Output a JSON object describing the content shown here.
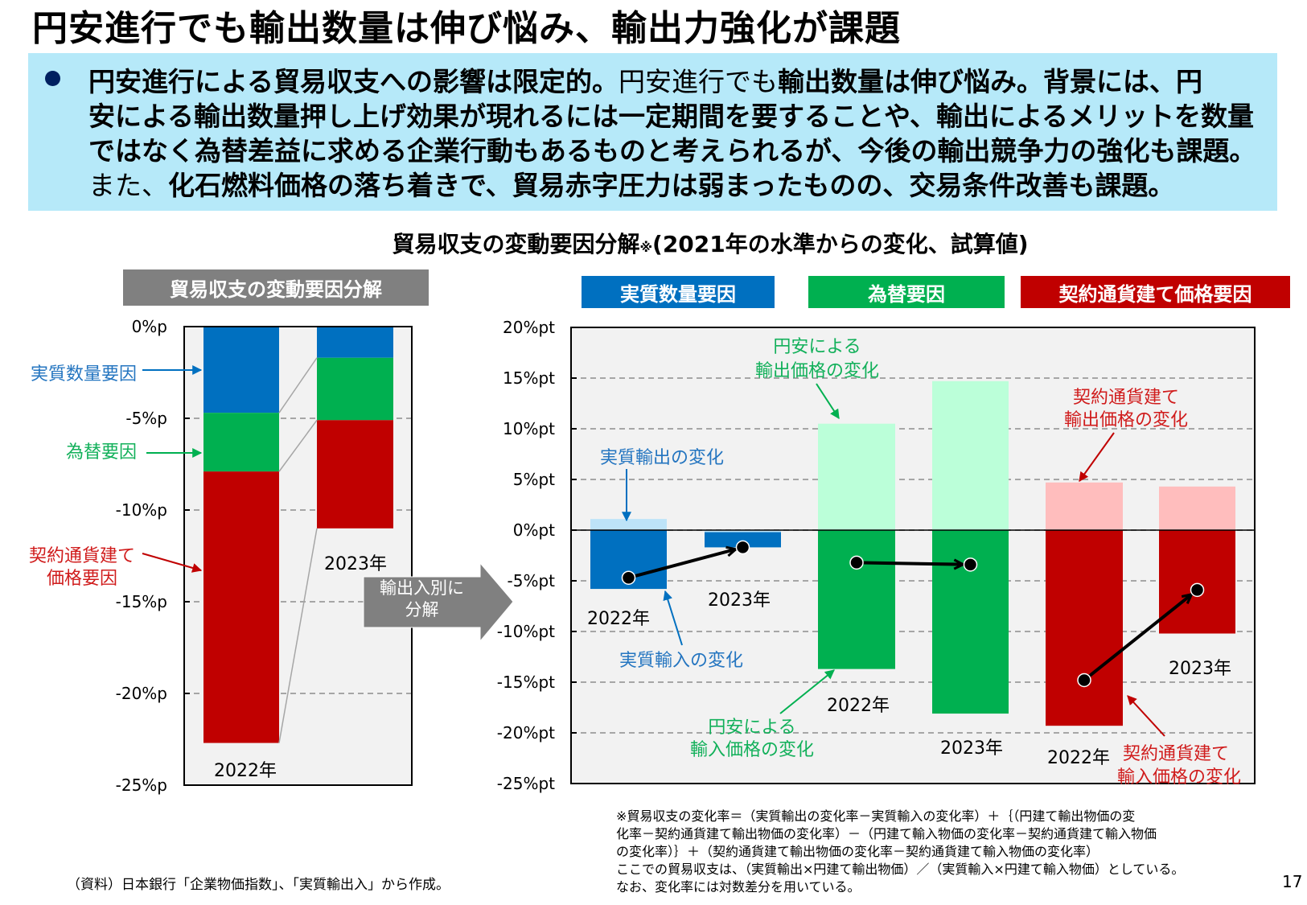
{
  "header": {
    "title": "円安進行でも輸出数量は伸び悩み、輸出力強化が課題"
  },
  "summary": {
    "lines": [
      {
        "segments": [
          {
            "text": "円安進行による貿易収支への影響は限定的。",
            "bold": true
          },
          {
            "text": "円安進行でも",
            "bold": false
          },
          {
            "text": "輸出数量は伸び悩み。背景には、円",
            "bold": true
          }
        ]
      },
      {
        "segments": [
          {
            "text": "安による輸出数量押し上げ効果が現れるには一定期間を要することや、輸出によるメリットを数量",
            "bold": true
          }
        ]
      },
      {
        "segments": [
          {
            "text": "ではなく為替差益に求める企業行動もあるものと考えられるが、今後の輸出競争力の強化も課題。",
            "bold": true
          }
        ]
      },
      {
        "segments": [
          {
            "text": "また、",
            "bold": false
          },
          {
            "text": "化石燃料価格の落ち着きで、貿易赤字圧力は弱まったものの、交易条件改善も課題。",
            "bold": true
          }
        ]
      }
    ]
  },
  "chart_section": {
    "title_main": "貿易収支の変動要因分解",
    "title_mark": "※",
    "title_sub": "(2021年の水準からの変化、試算値)"
  },
  "left_panel": {
    "header": "貿易収支の変動要因分解",
    "annotations": {
      "quantity": "実質数量要因",
      "fx": "為替要因",
      "contract_line1": "契約通貨建て",
      "contract_line2": "価格要因"
    },
    "year_labels": [
      "2022年",
      "2023年"
    ]
  },
  "decompose_arrow": {
    "line1": "輸出入別に",
    "line2": "分解"
  },
  "legend": [
    {
      "label": "実質数量要因",
      "color": "#0070C0"
    },
    {
      "label": "為替要因",
      "color": "#00B050"
    },
    {
      "label": "契約通貨建て価格要因",
      "color": "#C00000"
    }
  ],
  "right_panel": {
    "annotations": {
      "real_export": "実質輸出の変化",
      "real_import": "実質輸入の変化",
      "fx_export_line1": "円安による",
      "fx_export_line2": "輸出価格の変化",
      "fx_import_line1": "円安による",
      "fx_import_line2": "輸入価格の変化",
      "contract_export_line1": "契約通貨建て",
      "contract_export_line2": "輸出価格の変化",
      "contract_import_line1": "契約通貨建て",
      "contract_import_line2": "輸入価格の変化"
    },
    "year_labels": [
      "2022年",
      "2023年",
      "2022年",
      "2023年",
      "2022年",
      "2023年"
    ]
  },
  "footnote": {
    "lines": [
      "※貿易収支の変化率＝（実質輸出の変化率－実質輸入の変化率）＋｛（円建て輸出物価の変",
      "化率－契約通貨建て輸出物価の変化率）－（円建て輸入物価の変化率－契約通貨建て輸入物価",
      "の変化率）｝＋（契約通貨建て輸出物価の変化率－契約通貨建て輸入物価の変化率）",
      "ここでの貿易収支は、（実質輸出×円建て輸出物価）／（実質輸入×円建て輸入物価）としている。",
      "なお、変化率には対数差分を用いている。"
    ]
  },
  "source": "（資料）日本銀行「企業物価指数」、「実質輸出入」から作成。",
  "page_number": "17",
  "colors": {
    "quantity": "#0070C0",
    "quantity_light": "#BDE3F8",
    "fx": "#00B050",
    "fx_light": "#BBFFD9",
    "contract": "#C00000",
    "contract_light": "#FFBDBD",
    "plot_bg": "#F2F2F2",
    "grid": "#A6A6A6",
    "summary_bg": "#B6E9F9",
    "bullet": "#002060",
    "arrow_gray": "#808080"
  },
  "chart_data": [
    {
      "type": "bar",
      "stacked": true,
      "title": "貿易収支の変動要因分解",
      "categories": [
        "2022年",
        "2023年"
      ],
      "series": [
        {
          "name": "実質数量要因",
          "values": [
            -4.7,
            -1.7
          ],
          "color": "#0070C0"
        },
        {
          "name": "為替要因",
          "values": [
            -3.2,
            -3.4
          ],
          "color": "#00B050"
        },
        {
          "name": "契約通貨建て価格要因",
          "values": [
            -14.8,
            -5.9
          ],
          "color": "#C00000"
        }
      ],
      "totals": [
        -22.7,
        -11.0
      ],
      "xlabel": "",
      "ylabel": "",
      "ylim": [
        -25,
        0
      ],
      "yticks": [
        0,
        -5,
        -10,
        -15,
        -20,
        -25
      ],
      "ytick_labels": [
        "0%p",
        "-5%p",
        "-10%p",
        "-15%p",
        "-20%p",
        "-25%p"
      ],
      "grid": "dashed horizontal",
      "legend": "none (side annotations)"
    },
    {
      "type": "bar",
      "stacked": false,
      "title": "輸出入別に分解",
      "groups": [
        {
          "name": "実質数量要因",
          "categories": [
            "2022年",
            "2023年"
          ],
          "export": [
            1.1,
            -0.2
          ],
          "import": [
            -5.8,
            -1.5
          ],
          "net": [
            -4.7,
            -1.7
          ],
          "color": "#0070C0",
          "color_light": "#BDE3F8"
        },
        {
          "name": "為替要因",
          "categories": [
            "2022年",
            "2023年"
          ],
          "export": [
            10.5,
            14.7
          ],
          "import": [
            -13.7,
            -18.1
          ],
          "net": [
            -3.2,
            -3.4
          ],
          "color": "#00B050",
          "color_light": "#BBFFD9"
        },
        {
          "name": "契約通貨建て価格要因",
          "categories": [
            "2022年",
            "2023年"
          ],
          "export": [
            4.7,
            4.3
          ],
          "import": [
            -19.3,
            -10.2
          ],
          "net": [
            -14.8,
            -5.9
          ],
          "color": "#C00000",
          "color_light": "#FFBDBD"
        }
      ],
      "xlabel": "",
      "ylabel": "",
      "ylim": [
        -25,
        20
      ],
      "yticks": [
        20,
        15,
        10,
        5,
        0,
        -5,
        -10,
        -15,
        -20,
        -25
      ],
      "ytick_labels": [
        "20%pt",
        "15%pt",
        "10%pt",
        "5%pt",
        "0%pt",
        "-5%pt",
        "-10%pt",
        "-15%pt",
        "-20%pt",
        "-25%pt"
      ],
      "grid": "dashed horizontal",
      "markers": "net change dots with arrows from 2022 to 2023"
    }
  ]
}
